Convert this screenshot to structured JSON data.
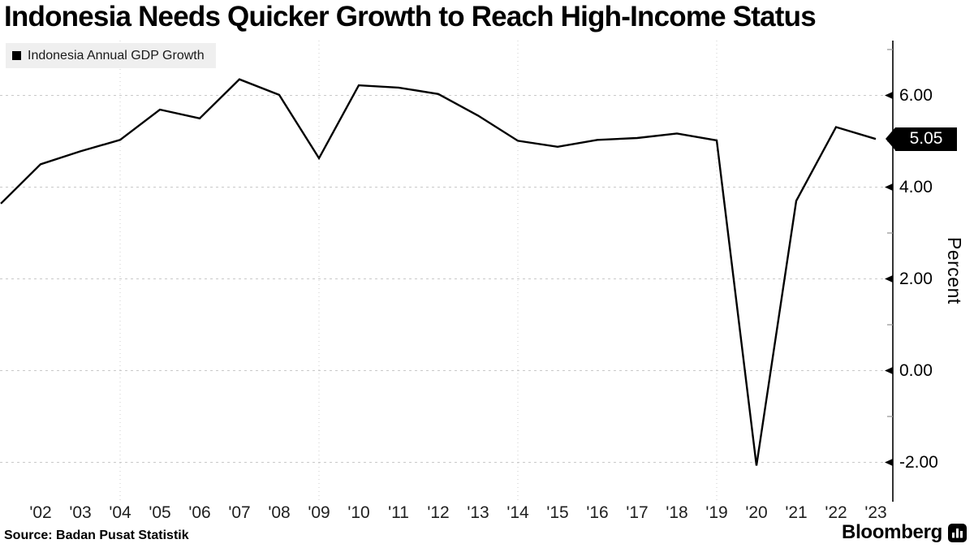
{
  "title": "Indonesia Needs Quicker Growth to Reach High-Income Status",
  "legend": {
    "swatch_color": "#000000",
    "label": "Indonesia Annual GDP Growth"
  },
  "source": "Source: Badan Pusat Statistik",
  "branding": {
    "name": "Bloomberg",
    "icon": "bloomberg-bar-chart-icon"
  },
  "colors": {
    "background": "#ffffff",
    "line": "#000000",
    "grid": "#c9c9c9",
    "legend_bg": "#efefef",
    "tag_bg": "#000000",
    "tag_text": "#ffffff"
  },
  "chart_data": {
    "type": "line",
    "title": "Indonesia Needs Quicker Growth to Reach High-Income Status",
    "series": [
      {
        "name": "Indonesia Annual GDP Growth",
        "x": [
          2001,
          2002,
          2003,
          2004,
          2005,
          2006,
          2007,
          2008,
          2009,
          2010,
          2011,
          2012,
          2013,
          2014,
          2015,
          2016,
          2017,
          2018,
          2019,
          2020,
          2021,
          2022,
          2023
        ],
        "values": [
          3.64,
          4.5,
          4.78,
          5.03,
          5.69,
          5.5,
          6.35,
          6.01,
          4.63,
          6.22,
          6.17,
          6.03,
          5.56,
          5.01,
          4.88,
          5.03,
          5.07,
          5.17,
          5.02,
          -2.07,
          3.7,
          5.31,
          5.05
        ]
      }
    ],
    "x_tick_years": [
      2002,
      2003,
      2004,
      2005,
      2006,
      2007,
      2008,
      2009,
      2010,
      2011,
      2012,
      2013,
      2014,
      2015,
      2016,
      2017,
      2018,
      2019,
      2020,
      2021,
      2022,
      2023
    ],
    "x_tick_labels": [
      "'02",
      "'03",
      "'04",
      "'05",
      "'06",
      "'07",
      "'08",
      "'09",
      "'10",
      "'11",
      "'12",
      "'13",
      "'14",
      "'15",
      "'16",
      "'17",
      "'18",
      "'19",
      "'20",
      "'21",
      "'22",
      "'23"
    ],
    "x_gridline_years": [
      2004,
      2009,
      2014,
      2019
    ],
    "xlim": [
      2001,
      2023.45
    ],
    "y_axis": {
      "label": "Percent",
      "side": "right",
      "tick_labels": [
        "6.00",
        "4.00",
        "2.00",
        "0.00",
        "-2.00"
      ],
      "tick_values": [
        6,
        4,
        2,
        0,
        -2
      ],
      "minor_tick_values": [
        7,
        5,
        3,
        1,
        -1
      ],
      "ylim": [
        -2.85,
        7.2
      ]
    },
    "last_value": 5.05,
    "last_value_label": "5.05",
    "grid": true,
    "legend_position": "top-left",
    "line_color": "#000000"
  }
}
